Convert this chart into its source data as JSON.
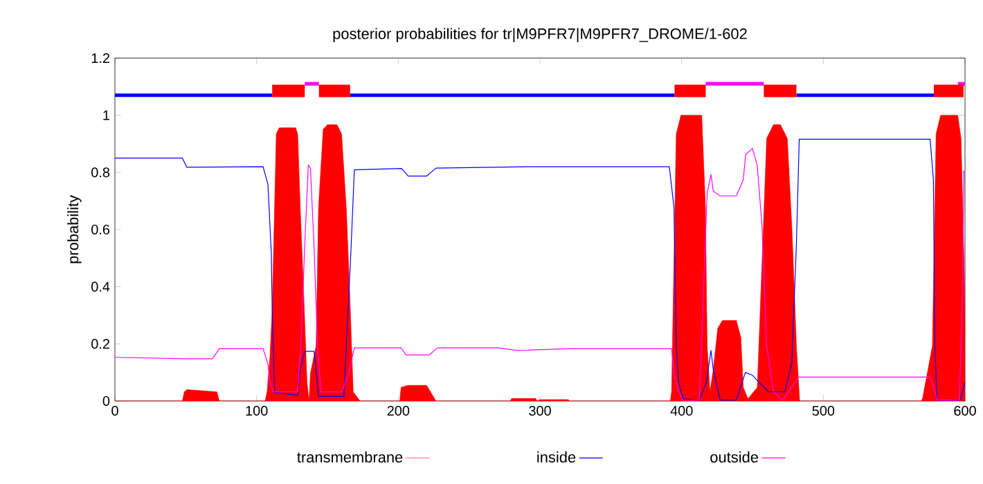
{
  "chart_data": {
    "type": "line",
    "title": "posterior probabilities for tr|M9PFR7|M9PFR7_DROME/1-602",
    "ylabel": "probability",
    "xlim": [
      0,
      600
    ],
    "ylim": [
      0,
      1.2
    ],
    "xticks": [
      0,
      100,
      200,
      300,
      400,
      500,
      600
    ],
    "yticks": [
      0,
      0.2,
      0.4,
      0.6,
      0.8,
      1,
      1.2
    ],
    "grid": false,
    "legend": "bottom",
    "marker": "none",
    "series": [
      {
        "name": "transmembrane",
        "type": "area",
        "color": "#ff0000",
        "x": [
          0,
          47.6,
          49,
          50.8,
          72,
          73.7,
          106,
          107.4,
          109.5,
          111,
          113.9,
          116,
          127.5,
          129,
          130.8,
          133.4,
          135.6,
          137,
          138,
          142,
          143.7,
          147,
          150,
          156.7,
          160,
          163.3,
          165.9,
          168.2,
          173,
          201,
          202,
          207,
          220,
          226.6,
          279,
          280,
          297,
          298,
          300,
          320,
          321,
          392,
          392.9,
          396.2,
          399.5,
          414.2,
          416.8,
          418,
          420,
          422.3,
          425.5,
          428.8,
          438.6,
          441.8,
          443.5,
          446.8,
          453.4,
          458.2,
          460,
          464.8,
          469.7,
          474.6,
          477.9,
          481,
          483.3,
          569,
          570,
          577,
          579.6,
          582.8,
          594.9,
          597.2,
          599.2,
          600
        ],
        "values": [
          0,
          0,
          0.032,
          0.04,
          0.032,
          0,
          0,
          0.032,
          0.161,
          0.32,
          0.935,
          0.956,
          0.956,
          0.935,
          0.677,
          0.355,
          0.064,
          0,
          0.097,
          0.193,
          0.677,
          0.951,
          0.967,
          0.967,
          0.935,
          0.677,
          0.355,
          0.032,
          0,
          0,
          0.048,
          0.055,
          0.055,
          0,
          0,
          0.009,
          0.009,
          0,
          0.005,
          0.005,
          0,
          0,
          0.032,
          0.935,
          1.0,
          1.0,
          0.677,
          0.193,
          0.032,
          0.11,
          0.255,
          0.282,
          0.282,
          0.222,
          0.048,
          0.008,
          0.048,
          0.677,
          0.919,
          0.967,
          0.967,
          0.919,
          0.597,
          0.193,
          0,
          0,
          0.008,
          0.193,
          0.935,
          1.0,
          1.0,
          0.919,
          0.516,
          0.3
        ]
      },
      {
        "name": "inside",
        "color": "#0000ff",
        "x": [
          0,
          47.6,
          50.8,
          104.6,
          108,
          110.4,
          111,
          112.7,
          129,
          130.7,
          134,
          140.5,
          142,
          143.7,
          161.6,
          164.9,
          166.5,
          169,
          202.3,
          207,
          220,
          226.6,
          295,
          391.3,
          394.6,
          396.2,
          397.9,
          401,
          412.5,
          417.4,
          420.7,
          422.3,
          427.2,
          438.6,
          445,
          450,
          455,
          461.4,
          472.8,
          477.7,
          481,
          483,
          575.4,
          577.7,
          578.7,
          580.3,
          596.6,
          599.9
        ],
        "values": [
          0.85,
          0.85,
          0.818,
          0.82,
          0.758,
          0.516,
          0.32,
          0.03,
          0.02,
          0.11,
          0.174,
          0.174,
          0.11,
          0.016,
          0.016,
          0.355,
          0.516,
          0.809,
          0.814,
          0.787,
          0.787,
          0.815,
          0.82,
          0.82,
          0.677,
          0.193,
          0.064,
          0.008,
          0.003,
          0.064,
          0.177,
          0.11,
          0.003,
          0.003,
          0.1,
          0.09,
          0.064,
          0.032,
          0.032,
          0.13,
          0.548,
          0.916,
          0.916,
          0.774,
          0.193,
          0.003,
          0.003,
          0.064
        ]
      },
      {
        "name": "outside",
        "color": "#ff00ff",
        "x": [
          0,
          47.6,
          68.8,
          73.7,
          104.6,
          108,
          109.5,
          111.8,
          129,
          131.3,
          134,
          136.5,
          138,
          140.5,
          143,
          145.4,
          160,
          165,
          169,
          202,
          205.5,
          221.8,
          227.6,
          270.6,
          283.7,
          319.6,
          392.9,
          394.6,
          397.9,
          401,
          412.5,
          418,
          420.7,
          422.3,
          427.2,
          438.6,
          443.5,
          445.2,
          450,
          453.4,
          456.7,
          460,
          464.8,
          471.3,
          477.7,
          482.6,
          575.4,
          577,
          580.3,
          596,
          598.2,
          599.2
        ],
        "values": [
          0.153,
          0.148,
          0.148,
          0.183,
          0.183,
          0.129,
          0.064,
          0.032,
          0.032,
          0.193,
          0.548,
          0.826,
          0.815,
          0.548,
          0.193,
          0.032,
          0.032,
          0.097,
          0.186,
          0.186,
          0.161,
          0.161,
          0.186,
          0.186,
          0.177,
          0.183,
          0.183,
          0.097,
          0.032,
          0.003,
          0.003,
          0.726,
          0.793,
          0.734,
          0.718,
          0.718,
          0.774,
          0.863,
          0.884,
          0.823,
          0.613,
          0.193,
          0.032,
          0.003,
          0.048,
          0.084,
          0.084,
          0.064,
          0.003,
          0.003,
          0.355,
          0.806
        ]
      },
      {
        "color": "#0000ff",
        "x": [
          0,
          111,
          138,
          166,
          395,
          438,
          481,
          578
        ],
        "values": [
          1.07,
          1.07,
          null,
          1.07,
          1.07,
          null,
          1.07,
          1.07
        ]
      },
      {
        "color": "#ff00ff",
        "x": [
          134,
          144,
          300,
          417,
          458,
          530,
          595,
          600
        ],
        "values": [
          1.11,
          1.11,
          null,
          1.11,
          1.11,
          null,
          1.11,
          1.11
        ]
      },
      {
        "color": "#ff0000",
        "x": [
          111,
          134,
          139,
          144,
          166,
          300,
          395,
          417,
          437,
          458,
          481,
          530,
          578,
          599
        ],
        "values": [
          1.085,
          1.085,
          null,
          1.085,
          1.085,
          null,
          1.085,
          1.085,
          null,
          1.085,
          1.085,
          null,
          1.085,
          1.085
        ]
      }
    ]
  }
}
